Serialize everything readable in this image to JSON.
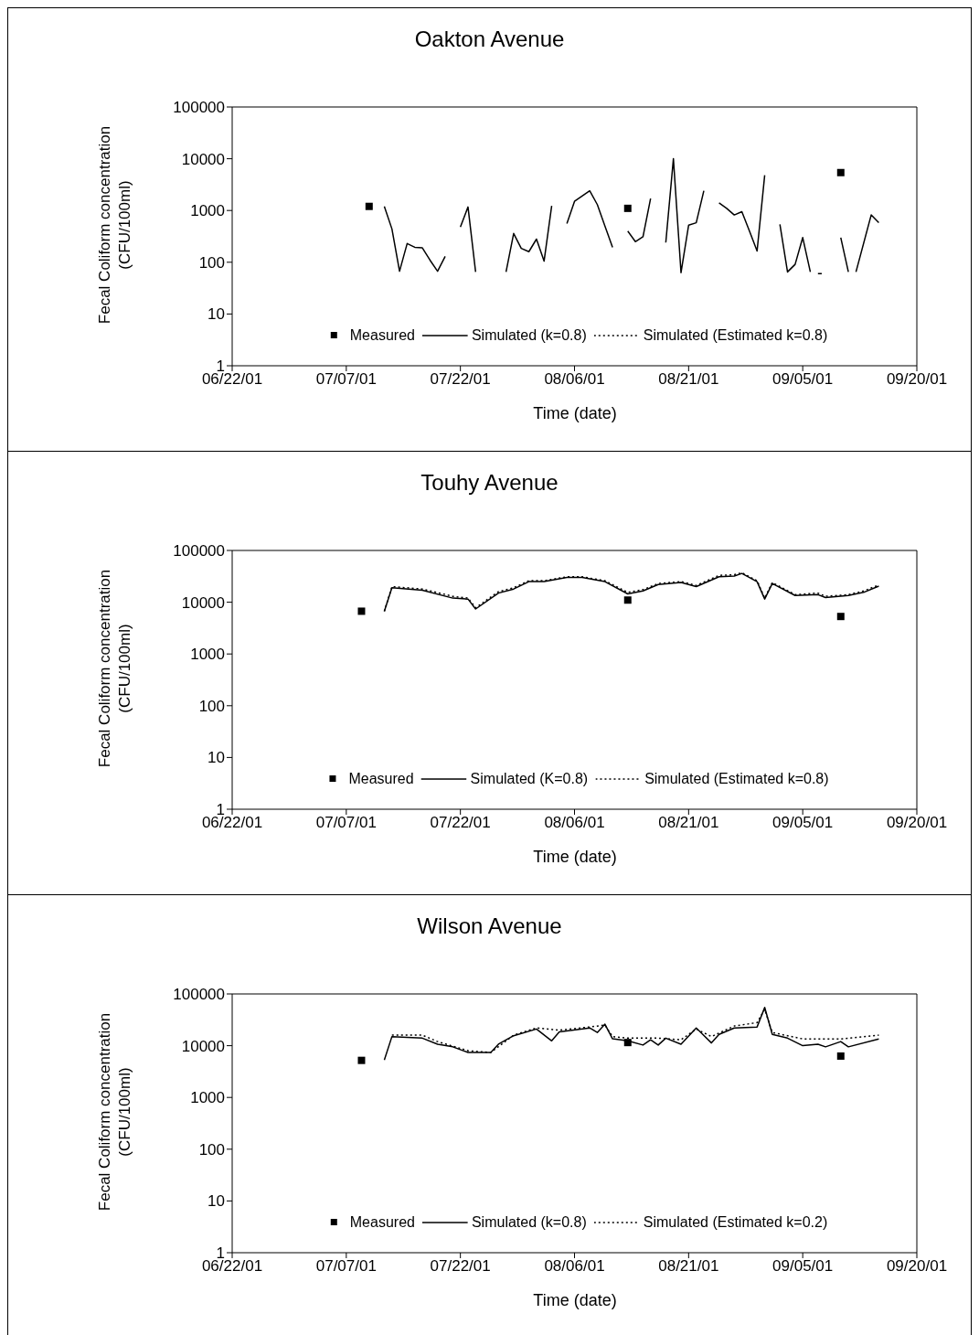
{
  "chart_data": [
    {
      "type": "line",
      "title": "Oakton Avenue",
      "xlabel": "Time (date)",
      "ylabel": "Fecal Coliform concentration (CFU/100ml)",
      "log": "y",
      "legend": "bottom",
      "xlim": [
        "2001-06-22",
        "2001-09-20"
      ],
      "ylim": [
        1,
        100000
      ],
      "yticks": [
        1,
        10,
        100,
        1000,
        10000,
        100000
      ],
      "xticks": [
        {
          "value": "2001-06-22",
          "label": "06/22/01"
        },
        {
          "value": "2001-07-07",
          "label": "07/07/01"
        },
        {
          "value": "2001-07-22",
          "label": "07/22/01"
        },
        {
          "value": "2001-08-06",
          "label": "08/06/01"
        },
        {
          "value": "2001-08-21",
          "label": "08/21/01"
        },
        {
          "value": "2001-09-05",
          "label": "09/05/01"
        },
        {
          "value": "2001-09-20",
          "label": "09/20/01"
        }
      ],
      "x": [
        "2001-07-12",
        "2001-07-13",
        "2001-07-14",
        "2001-07-15",
        "2001-07-16",
        "2001-07-17",
        "2001-07-18",
        "2001-07-19",
        "2001-07-20",
        "2001-07-21",
        "2001-07-22",
        "2001-07-23",
        "2001-07-24",
        "2001-07-25",
        "2001-07-28",
        "2001-07-29",
        "2001-07-30",
        "2001-07-31",
        "2001-08-01",
        "2001-08-02",
        "2001-08-03",
        "2001-08-04",
        "2001-08-05",
        "2001-08-06",
        "2001-08-07",
        "2001-08-08",
        "2001-08-09",
        "2001-08-10",
        "2001-08-11",
        "2001-08-12",
        "2001-08-13",
        "2001-08-14",
        "2001-08-15",
        "2001-08-16",
        "2001-08-17",
        "2001-08-18",
        "2001-08-19",
        "2001-08-20",
        "2001-08-21",
        "2001-08-22",
        "2001-08-23",
        "2001-08-24",
        "2001-08-25",
        "2001-08-26",
        "2001-08-27",
        "2001-08-28",
        "2001-08-29",
        "2001-08-30",
        "2001-08-31",
        "2001-09-01",
        "2001-09-02",
        "2001-09-03",
        "2001-09-04",
        "2001-09-05",
        "2001-09-06",
        "2001-09-06T12:00",
        "2001-09-07",
        "2001-09-07T12:00",
        "2001-09-08",
        "2001-09-10",
        "2001-09-11",
        "2001-09-11T12:00",
        "2001-09-12",
        "2001-09-14",
        "2001-09-15"
      ],
      "series": [
        {
          "name": "Measured",
          "type": "scatter",
          "marker": "square",
          "color": "#000000",
          "x": [
            "2001-07-10",
            "2001-08-13",
            "2001-09-10"
          ],
          "values": [
            1200,
            1100,
            5400
          ]
        },
        {
          "name": "Simulated (k=0.8)",
          "line_style": "solid",
          "color": "#000000",
          "values": [
            1200,
            440,
            67,
            230,
            195,
            190,
            110,
            67,
            130,
            null,
            480,
            1170,
            65,
            null,
            65,
            360,
            185,
            160,
            280,
            105,
            1230,
            null,
            560,
            1500,
            1900,
            2400,
            1300,
            500,
            195,
            null,
            400,
            250,
            310,
            1700,
            null,
            240,
            10000,
            63,
            520,
            580,
            2400,
            null,
            1400,
            1100,
            820,
            950,
            400,
            165,
            4800,
            null,
            540,
            65,
            91,
            300,
            65,
            null,
            60,
            60,
            null,
            300,
            65,
            null,
            65,
            820,
            580
          ]
        },
        {
          "name": "Simulated (Estimated k=0.8)",
          "line_style": "dotted",
          "color": "#000000",
          "values": [
            null,
            null,
            null,
            null,
            null,
            null,
            null,
            null,
            null,
            null,
            null,
            null,
            null,
            null,
            null,
            null,
            null,
            null,
            null,
            null,
            null,
            null,
            null,
            null,
            null,
            null,
            null,
            null,
            null,
            null,
            null,
            null,
            null,
            null,
            null,
            null,
            null,
            null,
            null,
            null,
            null,
            null,
            null,
            null,
            null,
            null,
            null,
            null,
            null,
            null,
            null,
            null,
            null,
            null,
            null,
            null,
            null,
            null,
            null,
            null,
            null,
            null,
            null,
            null,
            null
          ]
        }
      ]
    },
    {
      "type": "line",
      "title": "Touhy Avenue",
      "xlabel": "Time (date)",
      "ylabel": "Fecal Coliform concentration (CFU/100ml)",
      "log": "y",
      "legend": "bottom",
      "xlim": [
        "2001-06-22",
        "2001-09-20"
      ],
      "ylim": [
        1,
        100000
      ],
      "yticks": [
        1,
        10,
        100,
        1000,
        10000,
        100000
      ],
      "xticks": [
        {
          "value": "2001-06-22",
          "label": "06/22/01"
        },
        {
          "value": "2001-07-07",
          "label": "07/07/01"
        },
        {
          "value": "2001-07-22",
          "label": "07/22/01"
        },
        {
          "value": "2001-08-06",
          "label": "08/06/01"
        },
        {
          "value": "2001-08-21",
          "label": "08/21/01"
        },
        {
          "value": "2001-09-05",
          "label": "09/05/01"
        },
        {
          "value": "2001-09-20",
          "label": "09/20/01"
        }
      ],
      "x": [
        "2001-07-12",
        "2001-07-13",
        "2001-07-17",
        "2001-07-21",
        "2001-07-23",
        "2001-07-24",
        "2001-07-27",
        "2001-07-29",
        "2001-07-31",
        "2001-08-02",
        "2001-08-05",
        "2001-08-07",
        "2001-08-10",
        "2001-08-13",
        "2001-08-15",
        "2001-08-17",
        "2001-08-20",
        "2001-08-22",
        "2001-08-25",
        "2001-08-27",
        "2001-08-28",
        "2001-08-30",
        "2001-08-31",
        "2001-09-01",
        "2001-09-04",
        "2001-09-07",
        "2001-09-08",
        "2001-09-11",
        "2001-09-13",
        "2001-09-15"
      ],
      "series": [
        {
          "name": "Measured",
          "type": "scatter",
          "marker": "square",
          "color": "#000000",
          "x": [
            "2001-07-09",
            "2001-08-13",
            "2001-09-10"
          ],
          "values": [
            6700,
            11000,
            5300
          ]
        },
        {
          "name": "Simulated (K=0.8)",
          "line_style": "solid",
          "color": "#000000",
          "values": [
            6700,
            19000,
            17000,
            12000,
            11500,
            7400,
            15000,
            18000,
            25000,
            25000,
            30000,
            30000,
            25000,
            14500,
            16500,
            22000,
            24000,
            20000,
            31000,
            32000,
            36000,
            25000,
            11500,
            23000,
            13500,
            14000,
            12300,
            13500,
            15500,
            20500
          ]
        },
        {
          "name": "Simulated (Estimated k=0.8)",
          "line_style": "dotted",
          "color": "#000000",
          "values": [
            6700,
            20000,
            18000,
            13000,
            12000,
            7800,
            16000,
            19000,
            26000,
            26000,
            31000,
            31000,
            26000,
            15500,
            17500,
            23000,
            25000,
            21000,
            33000,
            34000,
            37000,
            26000,
            12000,
            24000,
            14000,
            15000,
            13000,
            14000,
            16500,
            21500
          ]
        }
      ]
    },
    {
      "type": "line",
      "title": "Wilson Avenue",
      "xlabel": "Time (date)",
      "ylabel": "Fecal Coliform concentration (CFU/100ml)",
      "log": "y",
      "legend": "bottom",
      "xlim": [
        "2001-06-22",
        "2001-09-20"
      ],
      "ylim": [
        1,
        100000
      ],
      "yticks": [
        1,
        10,
        100,
        1000,
        10000,
        100000
      ],
      "xticks": [
        {
          "value": "2001-06-22",
          "label": "06/22/01"
        },
        {
          "value": "2001-07-07",
          "label": "07/07/01"
        },
        {
          "value": "2001-07-22",
          "label": "07/22/01"
        },
        {
          "value": "2001-08-06",
          "label": "08/06/01"
        },
        {
          "value": "2001-08-21",
          "label": "08/21/01"
        },
        {
          "value": "2001-09-05",
          "label": "09/05/01"
        },
        {
          "value": "2001-09-20",
          "label": "09/20/01"
        }
      ],
      "series": [
        {
          "name": "Measured",
          "type": "scatter",
          "marker": "square",
          "color": "#000000",
          "x": [
            "2001-07-09",
            "2001-08-13",
            "2001-09-10"
          ],
          "values": [
            5200,
            11500,
            6300
          ]
        },
        {
          "name": "Simulated (k=0.8)",
          "line_style": "solid",
          "color": "#000000",
          "x": [
            "2001-07-12",
            "2001-07-13",
            "2001-07-17",
            "2001-07-19",
            "2001-07-21",
            "2001-07-23",
            "2001-07-26",
            "2001-07-27",
            "2001-07-29",
            "2001-08-01",
            "2001-08-03",
            "2001-08-04",
            "2001-08-08",
            "2001-08-09",
            "2001-08-10",
            "2001-08-11",
            "2001-08-13",
            "2001-08-15",
            "2001-08-16",
            "2001-08-17",
            "2001-08-18",
            "2001-08-20",
            "2001-08-22",
            "2001-08-24",
            "2001-08-25",
            "2001-08-27",
            "2001-08-30",
            "2001-08-31",
            "2001-09-01",
            "2001-09-03",
            "2001-09-05",
            "2001-09-07",
            "2001-09-08",
            "2001-09-10",
            "2001-09-11",
            "2001-09-15"
          ],
          "values": [
            5300,
            15000,
            14000,
            10700,
            9500,
            7400,
            7400,
            10700,
            15600,
            21000,
            12400,
            18500,
            22000,
            18000,
            26000,
            13600,
            12400,
            10300,
            13000,
            10300,
            14000,
            10700,
            22000,
            11300,
            16500,
            22000,
            23000,
            55000,
            16500,
            14000,
            10000,
            10700,
            9500,
            12000,
            9500,
            13500
          ]
        },
        {
          "name": "Simulated (Estimated k=0.2)",
          "line_style": "dotted",
          "color": "#000000",
          "x": [
            "2001-07-13",
            "2001-07-17",
            "2001-07-19",
            "2001-07-23",
            "2001-07-26",
            "2001-07-29",
            "2001-08-01",
            "2001-08-04",
            "2001-08-08",
            "2001-08-10",
            "2001-08-11",
            "2001-08-13",
            "2001-08-17",
            "2001-08-20",
            "2001-08-22",
            "2001-08-24",
            "2001-08-27",
            "2001-08-30",
            "2001-08-31",
            "2001-09-01",
            "2001-09-05",
            "2001-09-10",
            "2001-09-15"
          ],
          "values": [
            16000,
            16000,
            12000,
            8000,
            7400,
            16000,
            22000,
            20000,
            23000,
            25000,
            15000,
            14000,
            14000,
            13000,
            21000,
            15000,
            24000,
            28000,
            50000,
            18000,
            13500,
            13500,
            16000
          ]
        }
      ]
    }
  ]
}
